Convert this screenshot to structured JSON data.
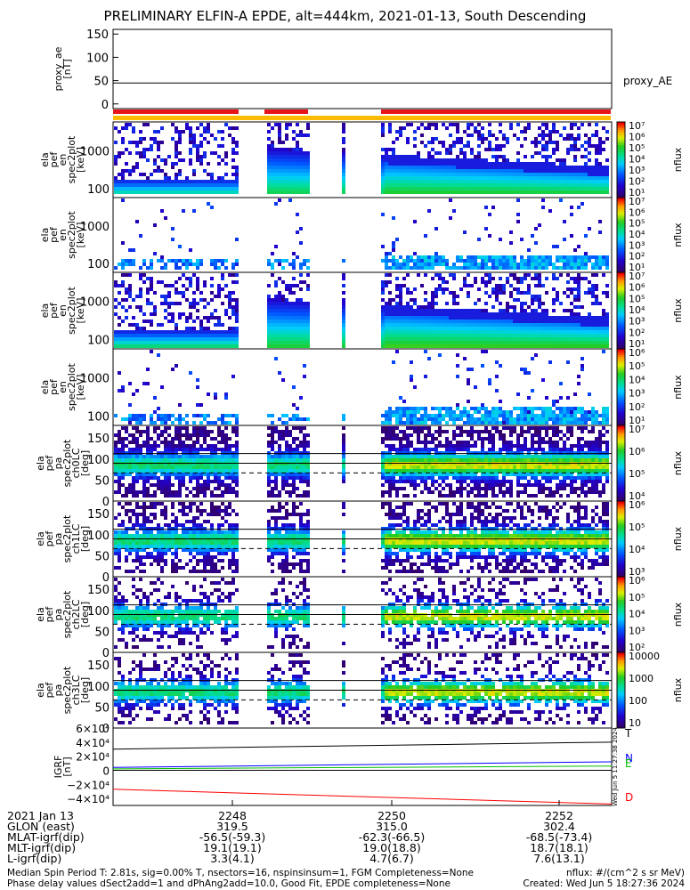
{
  "title": "PRELIMINARY ELFIN-A EPDE, alt=444km, 2021-01-13, South Descending",
  "chart_data": [
    {
      "type": "line",
      "panel": "proxy_ae",
      "ylabel": [
        "proxy_ae",
        "[nT]"
      ],
      "yticks": [
        "150",
        "100",
        "50",
        "0"
      ],
      "ylim": [
        -10,
        160
      ],
      "series": [
        {
          "name": "proxy_AE",
          "values": [
            45,
            45,
            45,
            45
          ]
        }
      ],
      "legend": "proxy_AE"
    },
    {
      "type": "heatmap",
      "panel": "energy spectrogram",
      "ylabel": [
        "ela",
        "pef",
        "en",
        "spec2plot",
        "[keV]"
      ],
      "yscale": "log",
      "yticks": [
        "1000",
        "100"
      ],
      "colorbar": {
        "label": "nflux",
        "ticks": [
          "10⁷",
          "10⁶",
          "10⁵",
          "10⁴",
          "10³",
          "10²",
          "10¹"
        ]
      }
    },
    {
      "type": "heatmap",
      "panel": "energy spectrogram (precipitating)",
      "ylabel": [
        "ela",
        "pef",
        "en",
        "spec2plot",
        "[keV]"
      ],
      "yscale": "log",
      "yticks": [
        "1000",
        "100"
      ],
      "colorbar": {
        "label": "nflux",
        "ticks": [
          "10⁷",
          "10⁶",
          "10⁵",
          "10⁴",
          "10³",
          "10²",
          "10¹"
        ]
      }
    },
    {
      "type": "heatmap",
      "panel": "energy spectrogram (trapped)",
      "ylabel": [
        "ela",
        "pef",
        "en",
        "spec2plot",
        "[keV]"
      ],
      "yscale": "log",
      "yticks": [
        "1000",
        "100"
      ],
      "colorbar": {
        "label": "nflux",
        "ticks": [
          "10⁷",
          "10⁶",
          "10⁵",
          "10⁴",
          "10³",
          "10²",
          "10¹"
        ]
      }
    },
    {
      "type": "heatmap",
      "panel": "energy spectrogram (backscattered)",
      "ylabel": [
        "ela",
        "pef",
        "en",
        "spec2plot",
        "[keV]"
      ],
      "yscale": "log",
      "yticks": [
        "1000",
        "100"
      ],
      "colorbar": {
        "label": "nflux",
        "ticks": [
          "10⁶",
          "10⁵",
          "10⁴",
          "10³",
          "10²",
          "10¹"
        ]
      }
    },
    {
      "type": "heatmap",
      "panel": "pitch angle ch0",
      "ylabel": [
        "ela",
        "pef",
        "pa",
        "spec2plot",
        "ch0LC",
        "[deg]"
      ],
      "ylim": [
        0,
        180
      ],
      "yticks": [
        "150",
        "100",
        "50",
        "0"
      ],
      "reference_lines": [
        {
          "style": "solid",
          "values": [
            113,
            90
          ]
        },
        {
          "style": "dashed",
          "values": [
            67
          ]
        }
      ],
      "colorbar": {
        "label": "nflux",
        "ticks": [
          "10⁷",
          "10⁶",
          "10⁵",
          "10⁴"
        ]
      }
    },
    {
      "type": "heatmap",
      "panel": "pitch angle ch1",
      "ylabel": [
        "ela",
        "pef",
        "pa",
        "spec2plot",
        "ch1LC",
        "[deg]"
      ],
      "ylim": [
        0,
        180
      ],
      "yticks": [
        "150",
        "100",
        "50",
        "0"
      ],
      "reference_lines": [
        {
          "style": "solid",
          "values": [
            113,
            90
          ]
        },
        {
          "style": "dashed",
          "values": [
            67
          ]
        }
      ],
      "colorbar": {
        "label": "nflux",
        "ticks": [
          "10⁶",
          "10⁵",
          "10⁴",
          "10³"
        ]
      }
    },
    {
      "type": "heatmap",
      "panel": "pitch angle ch2",
      "ylabel": [
        "ela",
        "pef",
        "pa",
        "spec2plot",
        "ch2LC",
        "[deg]"
      ],
      "ylim": [
        0,
        180
      ],
      "yticks": [
        "150",
        "100",
        "50",
        "0"
      ],
      "reference_lines": [
        {
          "style": "solid",
          "values": [
            113,
            90
          ]
        },
        {
          "style": "dashed",
          "values": [
            67
          ]
        }
      ],
      "colorbar": {
        "label": "nflux",
        "ticks": [
          "10⁶",
          "10⁵",
          "10⁴",
          "10³",
          "10²"
        ]
      }
    },
    {
      "type": "heatmap",
      "panel": "pitch angle ch3",
      "ylabel": [
        "ela",
        "pef",
        "pa",
        "spec2plot",
        "ch3LC",
        "[deg]"
      ],
      "ylim": [
        0,
        180
      ],
      "yticks": [
        "150",
        "100",
        "50",
        "0"
      ],
      "reference_lines": [
        {
          "style": "solid",
          "values": [
            113,
            90
          ]
        },
        {
          "style": "dashed",
          "values": [
            67
          ]
        }
      ],
      "colorbar": {
        "label": "nflux",
        "ticks": [
          "10000",
          "1000",
          "100",
          "10"
        ]
      }
    },
    {
      "type": "line",
      "panel": "IGRF",
      "ylabel": [
        "IGRF",
        "[nT]"
      ],
      "yticks": [
        "6×10⁴",
        "4×10⁴",
        "2×10⁴",
        "0",
        "−2×10⁴",
        "−4×10⁴"
      ],
      "ylim": [
        -50000,
        60000
      ],
      "x": [
        0,
        1
      ],
      "series": [
        {
          "name": "T",
          "color": "#000000",
          "values": [
            30000,
            40000
          ]
        },
        {
          "name": "N",
          "color": "#0000ff",
          "values": [
            4000,
            12000
          ]
        },
        {
          "name": "E",
          "color": "#00c000",
          "values": [
            2000,
            6000
          ]
        },
        {
          "name": "D",
          "color": "#ff0000",
          "values": [
            -27000,
            -48000
          ]
        }
      ],
      "side_label": "Wed Jun 5 11:27:38 2024"
    }
  ],
  "footer": {
    "row_labels": [
      "2021 Jan 13",
      "GLON (east)",
      "MLAT-igrf(dip)",
      "MLT-igrf(dip)",
      "L-igrf(dip)"
    ],
    "columns": [
      {
        "time": "2248",
        "glon": "319.5",
        "mlat": "-56.5(-59.3)",
        "mlt": "19.1(19.1)",
        "l": "3.3(4.1)"
      },
      {
        "time": "2250",
        "glon": "315.0",
        "mlat": "-62.3(-66.5)",
        "mlt": "19.0(18.8)",
        "l": "4.7(6.7)"
      },
      {
        "time": "2252",
        "glon": "302.4",
        "mlat": "-68.5(-73.4)",
        "mlt": "18.7(18.1)",
        "l": "7.6(13.1)"
      }
    ],
    "note_left_1": "Median Spin Period T: 2.81s, sig=0.00% T, nsectors=16, nspinsinsum=1, FGM Completeness=None",
    "note_left_2": "Phase delay values dSect2add=1 and dPhAng2add=10.0, Good Fit, EPDE completeness=None",
    "note_right_1": "nflux: #/(cm^2 s sr MeV)",
    "note_right_2": "Created: Wed Jun  5 18:27:36 2024"
  }
}
